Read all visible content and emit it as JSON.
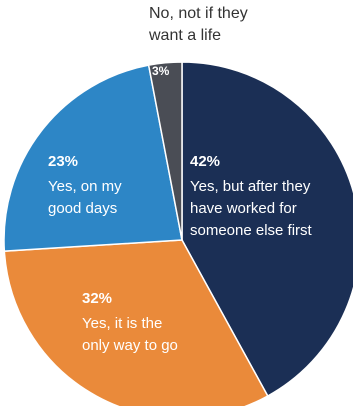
{
  "chart_data": {
    "type": "pie",
    "start_angle_deg": 0,
    "direction": "clockwise",
    "slices": [
      {
        "pct_label": "42%",
        "value": 42,
        "label_lines": [
          "Yes, but after they",
          "have worked for",
          "someone else first"
        ],
        "color": "#1b2f55"
      },
      {
        "pct_label": "32%",
        "value": 32,
        "label_lines": [
          "Yes, it is the",
          "only way to go"
        ],
        "color": "#ea8a3a"
      },
      {
        "pct_label": "23%",
        "value": 23,
        "label_lines": [
          "Yes, on my",
          "good days"
        ],
        "color": "#2d86c6"
      },
      {
        "pct_label": "3%",
        "value": 3,
        "label_lines": [
          "No, not if they",
          "want a life"
        ],
        "color": "#4a4d55"
      }
    ]
  }
}
